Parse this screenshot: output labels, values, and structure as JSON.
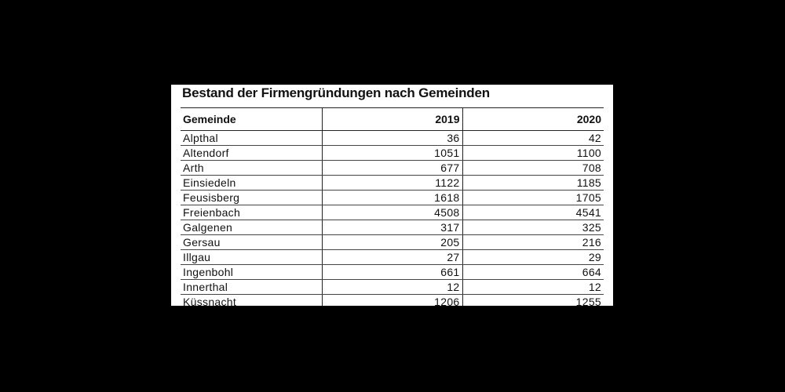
{
  "title": "Bestand der Firmengründungen nach Gemeinden",
  "columns": [
    "Gemeinde",
    "2019",
    "2020"
  ],
  "rows": [
    {
      "gemeinde": "Alpthal",
      "y2019": "36",
      "y2020": "42"
    },
    {
      "gemeinde": "Altendorf",
      "y2019": "1051",
      "y2020": "1100"
    },
    {
      "gemeinde": "Arth",
      "y2019": "677",
      "y2020": "708"
    },
    {
      "gemeinde": "Einsiedeln",
      "y2019": "1122",
      "y2020": "1185"
    },
    {
      "gemeinde": "Feusisberg",
      "y2019": "1618",
      "y2020": "1705"
    },
    {
      "gemeinde": "Freienbach",
      "y2019": "4508",
      "y2020": "4541"
    },
    {
      "gemeinde": "Galgenen",
      "y2019": "317",
      "y2020": "325"
    },
    {
      "gemeinde": "Gersau",
      "y2019": "205",
      "y2020": "216"
    },
    {
      "gemeinde": "Illgau",
      "y2019": "27",
      "y2020": "29"
    },
    {
      "gemeinde": "Ingenbohl",
      "y2019": "661",
      "y2020": "664"
    },
    {
      "gemeinde": "Innerthal",
      "y2019": "12",
      "y2020": "12"
    },
    {
      "gemeinde": "Küssnacht",
      "y2019": "1206",
      "y2020": "1255"
    }
  ]
}
